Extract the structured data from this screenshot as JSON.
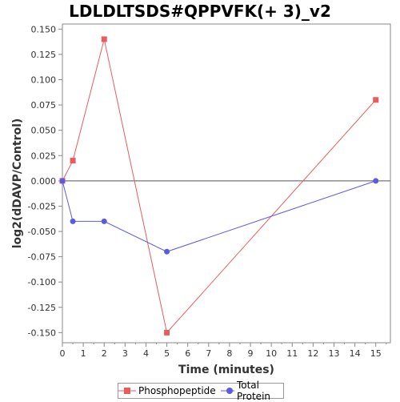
{
  "chart_data": {
    "type": "line",
    "title": "LDLDLTSDS#QPPVFK(+ 3)_v2",
    "xlabel": "Time (minutes)",
    "ylabel": "log2(dDAVP/Control)",
    "xlim": [
      0,
      15.7
    ],
    "ylim": [
      -0.16,
      0.155
    ],
    "xticks": [
      0,
      1,
      2,
      3,
      4,
      5,
      6,
      7,
      8,
      9,
      10,
      11,
      12,
      13,
      14,
      15
    ],
    "yticks": [
      0.15,
      0.125,
      0.1,
      0.075,
      0.05,
      0.025,
      0.0,
      -0.025,
      -0.05,
      -0.075,
      -0.1,
      -0.125,
      -0.15
    ],
    "ytick_labels": [
      "0.150",
      "0.125",
      "0.100",
      "0.075",
      "0.050",
      "0.025",
      "0.000",
      "-0.025",
      "-0.050",
      "-0.075",
      "-0.100",
      "-0.125",
      "-0.150"
    ],
    "zero_line": true,
    "grid": false,
    "legend_position": "bottom-center",
    "series": [
      {
        "name": "Phosphopeptide",
        "color": "#e85c5c",
        "marker": "square",
        "x": [
          0,
          0.5,
          2,
          5,
          15
        ],
        "y": [
          0.0,
          0.02,
          0.14,
          -0.15,
          0.08
        ]
      },
      {
        "name": "Total Protein",
        "color": "#5a5ae6",
        "marker": "circle",
        "x": [
          0,
          0.5,
          2,
          5,
          15
        ],
        "y": [
          0.0,
          -0.04,
          -0.04,
          -0.07,
          0.0
        ]
      }
    ]
  }
}
